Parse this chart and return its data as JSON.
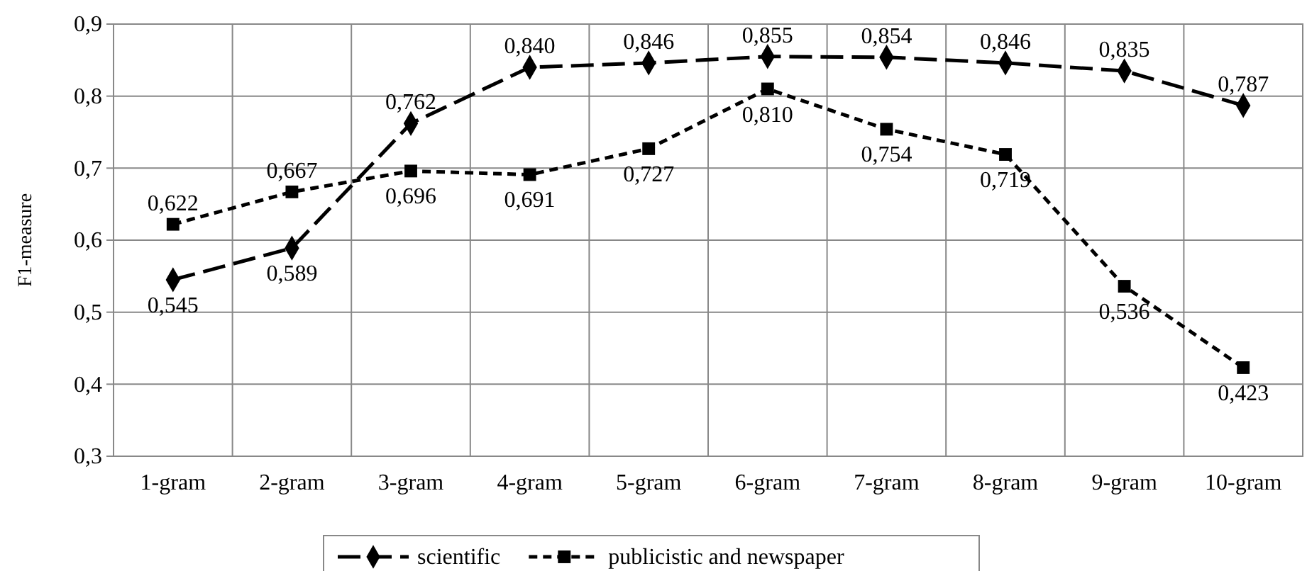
{
  "chart_data": {
    "type": "line",
    "ylabel": "F1-measure",
    "categories": [
      "1-gram",
      "2-gram",
      "3-gram",
      "4-gram",
      "5-gram",
      "6-gram",
      "7-gram",
      "8-gram",
      "9-gram",
      "10-gram"
    ],
    "series": [
      {
        "name": "scientific",
        "color": "#000000",
        "marker": "diamond",
        "line_style": "dashed",
        "values": [
          0.545,
          0.589,
          0.762,
          0.84,
          0.846,
          0.855,
          0.854,
          0.846,
          0.835,
          0.787
        ],
        "value_labels": [
          "0,545",
          "0,589",
          "0,762",
          "0,840",
          "0,846",
          "0,855",
          "0,854",
          "0,846",
          "0,835",
          "0,787"
        ]
      },
      {
        "name": "publicistic and newspaper",
        "color": "#000000",
        "marker": "square",
        "line_style": "dotted",
        "values": [
          0.622,
          0.667,
          0.696,
          0.691,
          0.727,
          0.81,
          0.754,
          0.719,
          0.536,
          0.423
        ],
        "value_labels": [
          "0,622",
          "0,667",
          "0,696",
          "0,691",
          "0,727",
          "0,810",
          "0,754",
          "0,719",
          "0,536",
          "0,423"
        ]
      }
    ],
    "ylim": [
      0.3,
      0.9
    ],
    "yticks": [
      {
        "value": 0.3,
        "label": "0,3"
      },
      {
        "value": 0.4,
        "label": "0,4"
      },
      {
        "value": 0.5,
        "label": "0,5"
      },
      {
        "value": 0.6,
        "label": "0,6"
      },
      {
        "value": 0.7,
        "label": "0,7"
      },
      {
        "value": 0.8,
        "label": "0,8"
      },
      {
        "value": 0.9,
        "label": "0,9"
      }
    ],
    "grid": true,
    "legend": "bottom"
  }
}
